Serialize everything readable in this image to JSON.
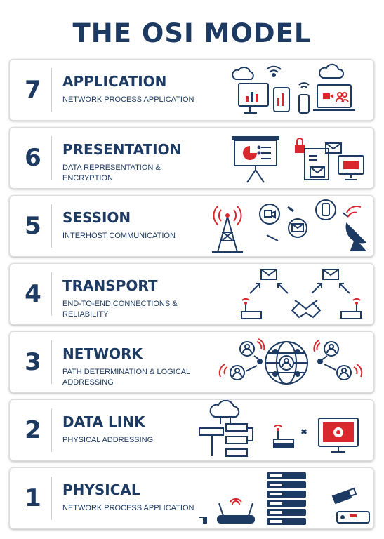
{
  "title": "THE OSI MODEL",
  "colors": {
    "navy": "#1d3a63",
    "red": "#d9272e",
    "border": "#dcdcdc"
  },
  "layers": [
    {
      "number": "7",
      "name": "APPLICATION",
      "description": "NETWORK PROCESS APPLICATION",
      "icons": [
        "cloud-icon",
        "wifi-icon",
        "desktop-chart-icon",
        "tablet-icon",
        "phone-icon",
        "laptop-video-call-icon"
      ]
    },
    {
      "number": "6",
      "name": "PRESENTATION",
      "description": "DATA REPRESENTATION & ENCRYPTION",
      "icons": [
        "presentation-board-icon",
        "lock-icon",
        "document-icon",
        "envelope-icon",
        "monitor-alert-icon"
      ]
    },
    {
      "number": "5",
      "name": "SESSION",
      "description": "INTERHOST COMMUNICATION",
      "icons": [
        "radio-tower-icon",
        "video-bubble-icon",
        "mail-bubble-icon",
        "phone-bubble-icon",
        "satellite-dish-icon"
      ]
    },
    {
      "number": "4",
      "name": "TRANSPORT",
      "description": "END-TO-END CONNECTIONS & RELIABILITY",
      "icons": [
        "envelope-icon",
        "router-icon",
        "handshake-icon",
        "envelope-icon",
        "router-icon"
      ]
    },
    {
      "number": "3",
      "name": "NETWORK",
      "description": "PATH DETERMINATION & LOGICAL ADDRESSING",
      "icons": [
        "user-node-icon",
        "globe-network-icon",
        "user-node-icon"
      ]
    },
    {
      "number": "2",
      "name": "DATA LINK",
      "description": "PHYSICAL ADDRESSING",
      "icons": [
        "cloud-flowchart-icon",
        "router-icon",
        "link-icon",
        "monitor-gear-icon"
      ]
    },
    {
      "number": "1",
      "name": "PHYSICAL",
      "description": "NETWORK PROCESS APPLICATION",
      "icons": [
        "cable-icon",
        "wifi-router-icon",
        "server-rack-icon",
        "usb-stick-icon",
        "hardware-box-icon"
      ]
    }
  ]
}
